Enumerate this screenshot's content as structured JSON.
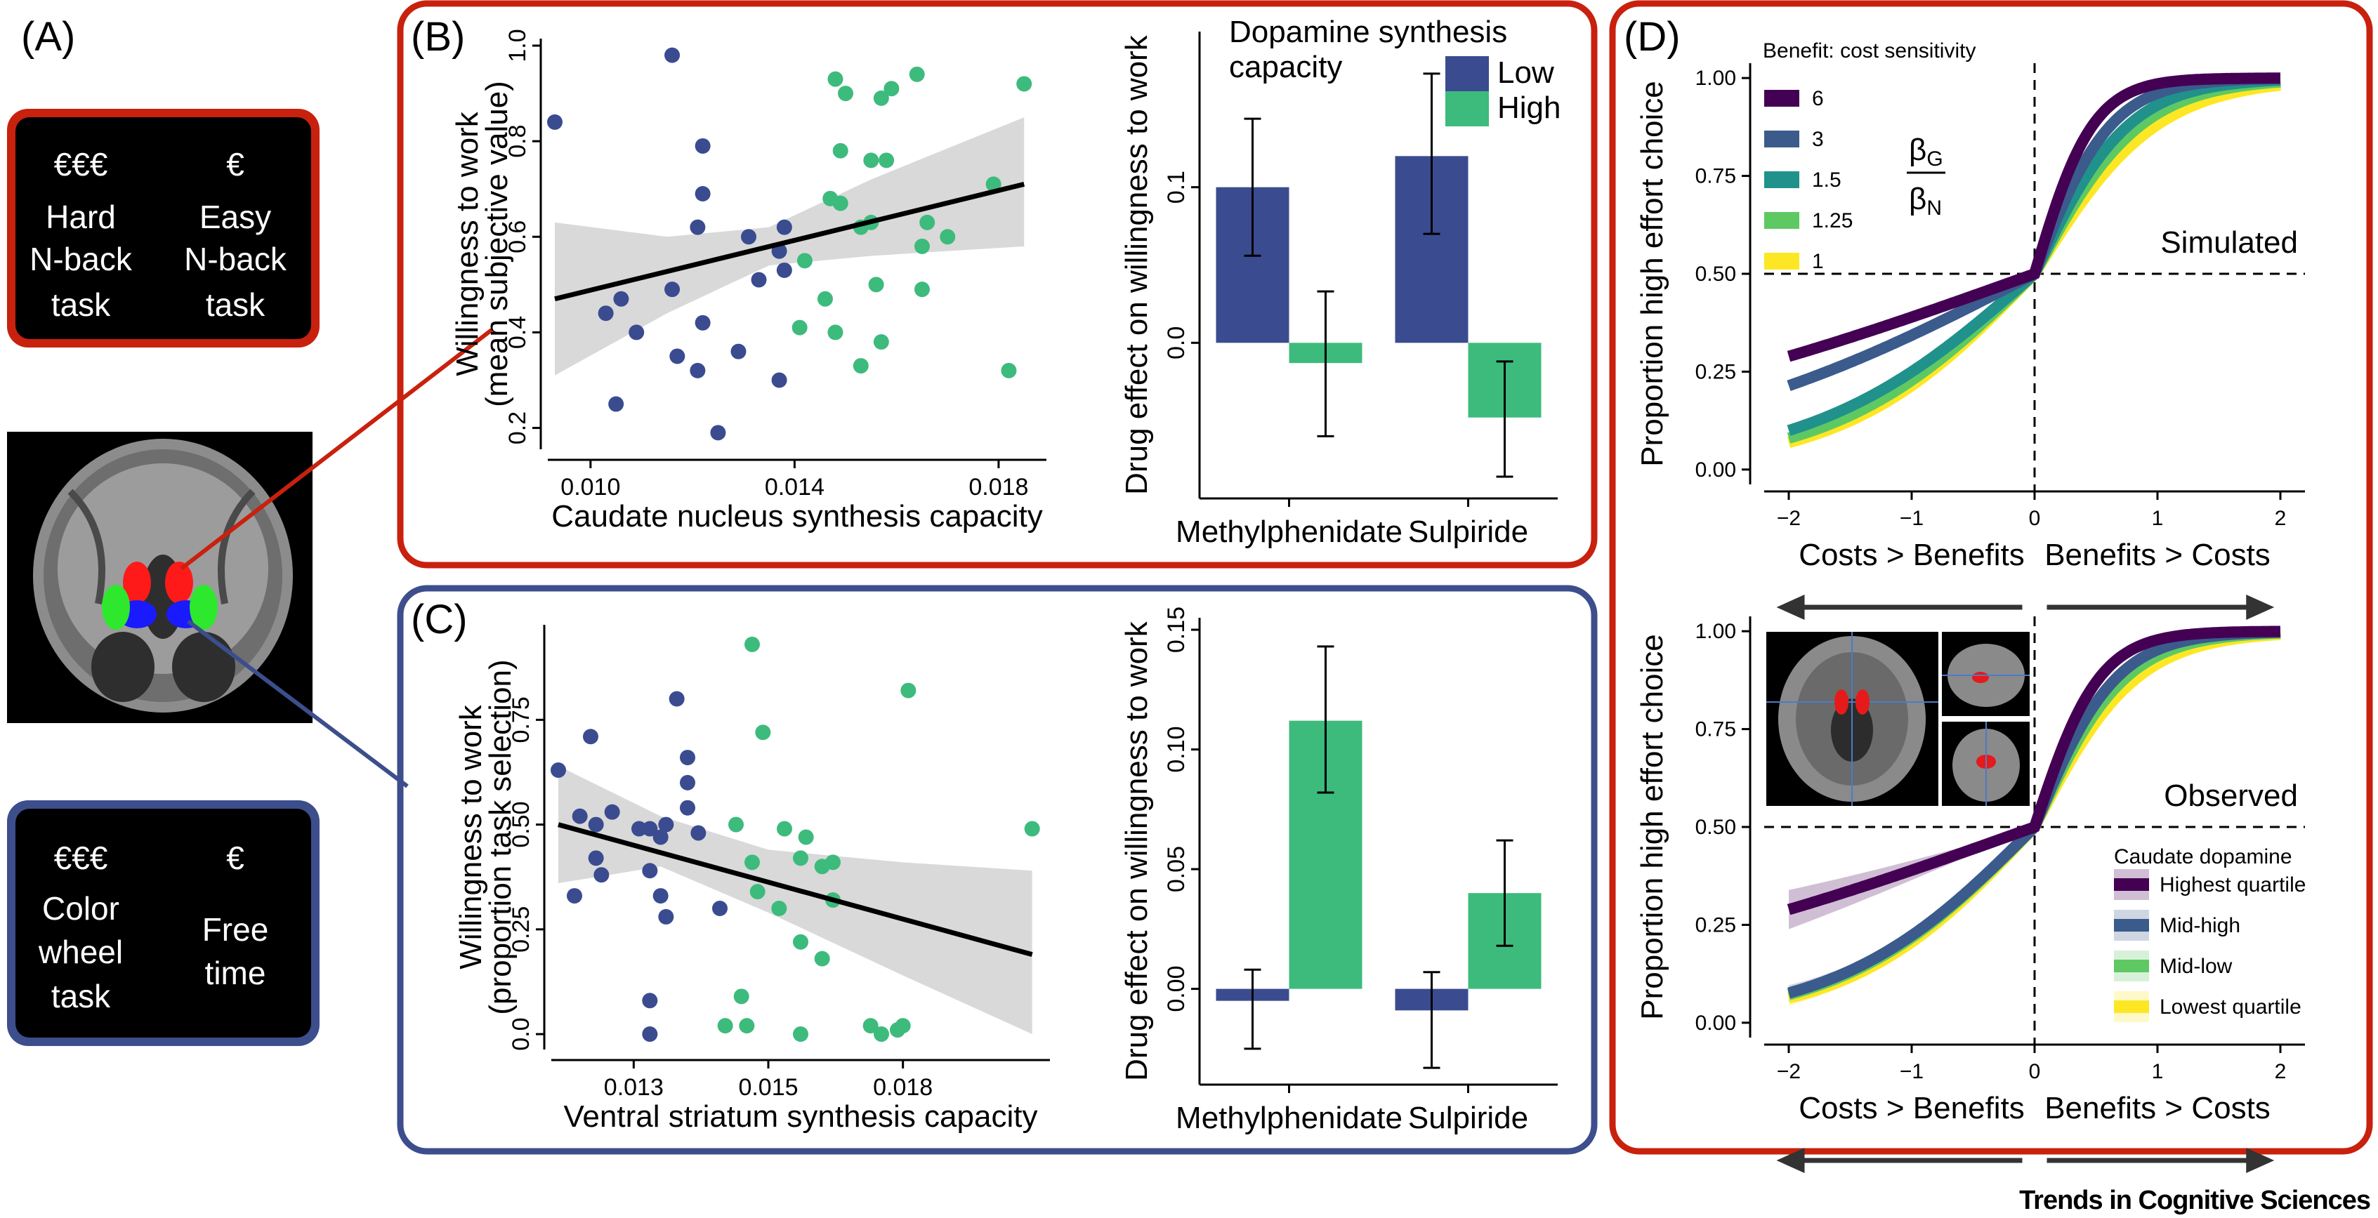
{
  "colors": {
    "low": "#3a4c8f",
    "high": "#3dbb7c",
    "red_frame": "#c8210e",
    "blue_frame": "#3d4e8c",
    "viridis": [
      "#440154",
      "#3b5b8c",
      "#21918c",
      "#5ec962",
      "#fde725"
    ]
  },
  "panel_a": {
    "letter": "(A)",
    "top_box": {
      "left_cost": "€€€",
      "left_lines": [
        "Hard",
        "N-back",
        "task"
      ],
      "right_cost": "€",
      "right_lines": [
        "Easy",
        "N-back",
        "task"
      ]
    },
    "bottom_box": {
      "left_cost": "€€€",
      "left_lines": [
        "Color",
        "wheel",
        "task"
      ],
      "right_cost": "€",
      "right_lines": [
        "Free",
        "time"
      ]
    }
  },
  "footer": "Trends in Cognitive Sciences",
  "chart_data": [
    {
      "id": "B-scatter",
      "letter": "(B)",
      "type": "scatter",
      "xlabel": "Caudate nucleus synthesis capacity",
      "ylabel": [
        "Willingness to work",
        "(mean subjective value)"
      ],
      "xlim": [
        0.0093,
        0.0188
      ],
      "ylim": [
        0.17,
        1.0
      ],
      "xticks": [
        "0.010",
        "0.014",
        "0.018"
      ],
      "xtick_values": [
        0.01,
        0.014,
        0.018
      ],
      "yticks": [
        "0.2",
        "0.4",
        "0.6",
        "0.8",
        "1.0"
      ],
      "ytick_values": [
        0.2,
        0.4,
        0.6,
        0.8,
        1.0
      ],
      "fit": {
        "x": [
          0.0093,
          0.0185
        ],
        "y": [
          0.47,
          0.71
        ]
      },
      "ci_upper": [
        [
          0.0093,
          0.63
        ],
        [
          0.0115,
          0.6
        ],
        [
          0.0135,
          0.62
        ],
        [
          0.0155,
          0.72
        ],
        [
          0.0185,
          0.85
        ]
      ],
      "ci_lower": [
        [
          0.0093,
          0.31
        ],
        [
          0.0115,
          0.44
        ],
        [
          0.0135,
          0.54
        ],
        [
          0.0155,
          0.56
        ],
        [
          0.0185,
          0.58
        ]
      ],
      "series": [
        {
          "group": "low",
          "points": [
            [
              0.0093,
              0.84
            ],
            [
              0.0116,
              0.98
            ],
            [
              0.0122,
              0.79
            ],
            [
              0.0122,
              0.69
            ],
            [
              0.0121,
              0.62
            ],
            [
              0.0131,
              0.6
            ],
            [
              0.0137,
              0.57
            ],
            [
              0.0138,
              0.62
            ],
            [
              0.0133,
              0.51
            ],
            [
              0.0138,
              0.53
            ],
            [
              0.0106,
              0.47
            ],
            [
              0.0116,
              0.49
            ],
            [
              0.0103,
              0.44
            ],
            [
              0.0109,
              0.4
            ],
            [
              0.0122,
              0.42
            ],
            [
              0.0117,
              0.35
            ],
            [
              0.0121,
              0.32
            ],
            [
              0.0129,
              0.36
            ],
            [
              0.0137,
              0.3
            ],
            [
              0.0105,
              0.25
            ],
            [
              0.0125,
              0.19
            ]
          ]
        },
        {
          "group": "high",
          "points": [
            [
              0.0148,
              0.93
            ],
            [
              0.015,
              0.9
            ],
            [
              0.0164,
              0.94
            ],
            [
              0.0185,
              0.92
            ],
            [
              0.0157,
              0.89
            ],
            [
              0.0159,
              0.91
            ],
            [
              0.0149,
              0.78
            ],
            [
              0.0155,
              0.76
            ],
            [
              0.0158,
              0.76
            ],
            [
              0.0147,
              0.68
            ],
            [
              0.0149,
              0.67
            ],
            [
              0.0153,
              0.62
            ],
            [
              0.0155,
              0.63
            ],
            [
              0.0166,
              0.63
            ],
            [
              0.0179,
              0.71
            ],
            [
              0.0165,
              0.58
            ],
            [
              0.017,
              0.6
            ],
            [
              0.0142,
              0.55
            ],
            [
              0.0156,
              0.5
            ],
            [
              0.0165,
              0.49
            ],
            [
              0.0146,
              0.47
            ],
            [
              0.0141,
              0.41
            ],
            [
              0.0148,
              0.4
            ],
            [
              0.0157,
              0.38
            ],
            [
              0.0153,
              0.33
            ],
            [
              0.0182,
              0.32
            ]
          ]
        }
      ]
    },
    {
      "id": "B-bar",
      "type": "bar",
      "ylabel": "Drug effect on willingness to work",
      "categories": [
        "Methylphenidate",
        "Sulpiride"
      ],
      "ylim": [
        -0.1,
        0.2
      ],
      "yticks": [
        "0.0",
        "0.1"
      ],
      "ytick_values": [
        0.0,
        0.1
      ],
      "legend_title": [
        "Dopamine synthesis",
        "capacity"
      ],
      "legend": [
        "Low",
        "High"
      ],
      "series": [
        {
          "name": "Low",
          "values": [
            0.1,
            0.12
          ],
          "err_low": [
            0.056,
            0.07
          ],
          "err_high": [
            0.144,
            0.173
          ]
        },
        {
          "name": "High",
          "values": [
            -0.013,
            -0.048
          ],
          "err_low": [
            -0.06,
            -0.086
          ],
          "err_high": [
            0.033,
            -0.012
          ]
        }
      ]
    },
    {
      "id": "C-scatter",
      "letter": "(C)",
      "type": "scatter",
      "xlabel": "Ventral striatum synthesis capacity",
      "ylabel": [
        "Willingness to work",
        "(proportion task selection)"
      ],
      "xlim": [
        0.0116,
        0.0206
      ],
      "ylim": [
        -0.02,
        0.96
      ],
      "xticks": [
        "0.013",
        "0.015",
        "0.018"
      ],
      "xtick_values": [
        0.013,
        0.0155,
        0.018
      ],
      "yticks": [
        "0.0",
        "0.25",
        "0.50",
        "0.75"
      ],
      "ytick_values": [
        0.0,
        0.25,
        0.5,
        0.75
      ],
      "fit": {
        "x": [
          0.0116,
          0.0204
        ],
        "y": [
          0.5,
          0.19
        ]
      },
      "ci_upper": [
        [
          0.0116,
          0.64
        ],
        [
          0.0135,
          0.52
        ],
        [
          0.0155,
          0.44
        ],
        [
          0.018,
          0.41
        ],
        [
          0.0204,
          0.39
        ]
      ],
      "ci_lower": [
        [
          0.0116,
          0.36
        ],
        [
          0.0135,
          0.4
        ],
        [
          0.0155,
          0.29
        ],
        [
          0.018,
          0.14
        ],
        [
          0.0204,
          0.0
        ]
      ],
      "series": [
        {
          "group": "low",
          "points": [
            [
              0.0116,
              0.63
            ],
            [
              0.0122,
              0.71
            ],
            [
              0.0138,
              0.8
            ],
            [
              0.014,
              0.66
            ],
            [
              0.014,
              0.6
            ],
            [
              0.012,
              0.52
            ],
            [
              0.0123,
              0.5
            ],
            [
              0.0126,
              0.53
            ],
            [
              0.0131,
              0.49
            ],
            [
              0.0133,
              0.49
            ],
            [
              0.0135,
              0.47
            ],
            [
              0.0136,
              0.5
            ],
            [
              0.014,
              0.54
            ],
            [
              0.0142,
              0.48
            ],
            [
              0.0123,
              0.42
            ],
            [
              0.0124,
              0.38
            ],
            [
              0.0119,
              0.33
            ],
            [
              0.0133,
              0.39
            ],
            [
              0.0135,
              0.33
            ],
            [
              0.0136,
              0.28
            ],
            [
              0.0146,
              0.3
            ],
            [
              0.0133,
              0.08
            ],
            [
              0.0133,
              0.0
            ]
          ]
        },
        {
          "group": "high",
          "points": [
            [
              0.0152,
              0.93
            ],
            [
              0.0181,
              0.82
            ],
            [
              0.0154,
              0.72
            ],
            [
              0.0149,
              0.5
            ],
            [
              0.0158,
              0.49
            ],
            [
              0.0162,
              0.47
            ],
            [
              0.0161,
              0.42
            ],
            [
              0.0165,
              0.4
            ],
            [
              0.0167,
              0.41
            ],
            [
              0.0152,
              0.41
            ],
            [
              0.0153,
              0.34
            ],
            [
              0.0157,
              0.3
            ],
            [
              0.0167,
              0.32
            ],
            [
              0.0161,
              0.22
            ],
            [
              0.0165,
              0.18
            ],
            [
              0.015,
              0.09
            ],
            [
              0.0147,
              0.02
            ],
            [
              0.0151,
              0.02
            ],
            [
              0.0161,
              0.0
            ],
            [
              0.0174,
              0.02
            ],
            [
              0.0176,
              0.0
            ],
            [
              0.0179,
              0.01
            ],
            [
              0.018,
              0.02
            ],
            [
              0.0204,
              0.49
            ]
          ]
        }
      ]
    },
    {
      "id": "C-bar",
      "type": "bar",
      "ylabel": "Drug effect on willingness to work",
      "categories": [
        "Methylphenidate",
        "Sulpiride"
      ],
      "ylim": [
        -0.04,
        0.155
      ],
      "yticks": [
        "0.00",
        "0.05",
        "0.10",
        "0.15"
      ],
      "ytick_values": [
        0.0,
        0.05,
        0.1,
        0.15
      ],
      "series": [
        {
          "name": "Low",
          "values": [
            -0.005,
            -0.009
          ],
          "err_low": [
            -0.025,
            -0.033
          ],
          "err_high": [
            0.008,
            0.007
          ]
        },
        {
          "name": "High",
          "values": [
            0.112,
            0.04
          ],
          "err_low": [
            0.082,
            0.018
          ],
          "err_high": [
            0.143,
            0.062
          ]
        }
      ]
    },
    {
      "id": "D-simulated",
      "letter": "(D)",
      "type": "line",
      "ylabel": "Proportion high effort choice",
      "annotation": "Simulated",
      "xlim": [
        -2.2,
        2.2
      ],
      "ylim": [
        -0.02,
        1.02
      ],
      "xticks": [
        "−2",
        "−1",
        "0",
        "1",
        "2"
      ],
      "xtick_values": [
        -2,
        -1,
        0,
        1,
        2
      ],
      "yticks": [
        "0.00",
        "0.25",
        "0.50",
        "0.75",
        "1.00"
      ],
      "ytick_values": [
        0,
        0.25,
        0.5,
        0.75,
        1.0
      ],
      "xlabel_left": "Costs > Benefits",
      "xlabel_right": "Benefits > Costs",
      "legend_title": "Benefit: cost sensitivity",
      "ratio_label": {
        "num": "β",
        "num_sub": "G",
        "den": "β",
        "den_sub": "N"
      },
      "series": [
        {
          "name": "6",
          "k_neg": 0.45,
          "k_pos": 4.2
        },
        {
          "name": "3",
          "k_neg": 0.65,
          "k_pos": 3.2
        },
        {
          "name": "1.5",
          "k_neg": 1.1,
          "k_pos": 2.6
        },
        {
          "name": "1.25",
          "k_neg": 1.22,
          "k_pos": 2.3
        },
        {
          "name": "1",
          "k_neg": 1.3,
          "k_pos": 2.0
        }
      ]
    },
    {
      "id": "D-observed",
      "type": "line",
      "ylabel": "Proportion high effort choice",
      "annotation": "Observed",
      "xlim": [
        -2.2,
        2.2
      ],
      "ylim": [
        -0.02,
        1.02
      ],
      "xticks": [
        "−2",
        "−1",
        "0",
        "1",
        "2"
      ],
      "xtick_values": [
        -2,
        -1,
        0,
        1,
        2
      ],
      "yticks": [
        "0.00",
        "0.25",
        "0.50",
        "0.75",
        "1.00"
      ],
      "ytick_values": [
        0,
        0.25,
        0.5,
        0.75,
        1.0
      ],
      "xlabel_left": "Costs > Benefits",
      "xlabel_right": "Benefits > Costs",
      "legend_title": "Caudate dopamine",
      "series": [
        {
          "name": "Highest quartile",
          "k_neg": 0.45,
          "k_pos": 3.8
        },
        {
          "name": "Mid-high",
          "k_neg": 1.25,
          "k_pos": 3.0
        },
        {
          "name": "Mid-low",
          "k_neg": 1.28,
          "k_pos": 2.7
        },
        {
          "name": "Lowest quartile",
          "k_neg": 1.35,
          "k_pos": 2.4
        }
      ]
    }
  ]
}
